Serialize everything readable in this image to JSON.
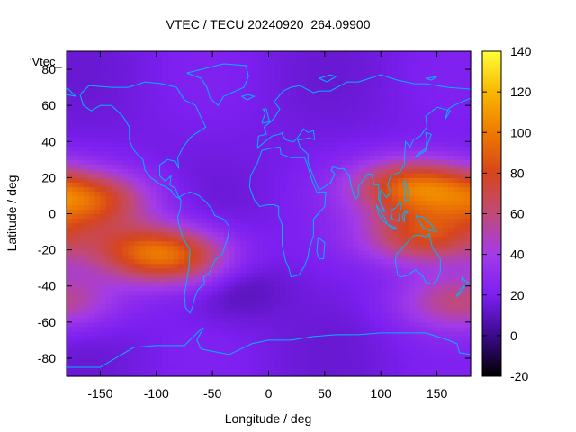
{
  "chart_data": {
    "type": "heatmap",
    "title": "VTEC / TECU 20240920_264.09900",
    "xlabel": "Longitude / deg",
    "ylabel": "Latitude / deg",
    "key_label": "'Vtec_",
    "xlim": [
      -180,
      180
    ],
    "ylim": [
      -90,
      90
    ],
    "xticks": [
      -150,
      -100,
      -50,
      0,
      50,
      100,
      150
    ],
    "yticks": [
      -80,
      -60,
      -40,
      -20,
      0,
      20,
      40,
      60,
      80
    ],
    "colorbar": {
      "min": -20,
      "max": 140,
      "ticks": [
        -20,
        0,
        20,
        40,
        60,
        80,
        100,
        120,
        140
      ],
      "palette": [
        "#000000",
        "#3a0a8a",
        "#7c1ff0",
        "#a33be8",
        "#c04a78",
        "#d6451c",
        "#ee7a00",
        "#f7b800",
        "#ffff3a"
      ]
    },
    "grid_resolution": {
      "dlon": 5,
      "dlat": 2.5
    },
    "vtec_features": [
      {
        "name": "background",
        "vtec": 18
      },
      {
        "name": "eastern-pacific-anomaly-crest",
        "lon": -160,
        "lat": 8,
        "vtec": 78
      },
      {
        "name": "south-pacific-band",
        "lon": -110,
        "lat": -20,
        "vtec": 70
      },
      {
        "name": "south-american-south-anomaly",
        "lon": -75,
        "lat": -25,
        "vtec": 60
      },
      {
        "name": "asia-pacific-north-crest",
        "lon": 130,
        "lat": 15,
        "vtec": 92
      },
      {
        "name": "australia-crest",
        "lon": 140,
        "lat": -12,
        "vtec": 80
      },
      {
        "name": "southern-ocean-patch",
        "lon": 170,
        "lat": -48,
        "vtec": 58
      },
      {
        "name": "south-atlantic-minimum",
        "lon": -30,
        "lat": -38,
        "vtec": 5
      }
    ],
    "overlay": "coastlines",
    "overlay_color": "#00b4ff",
    "grid": false,
    "legend_position": "top-left"
  }
}
